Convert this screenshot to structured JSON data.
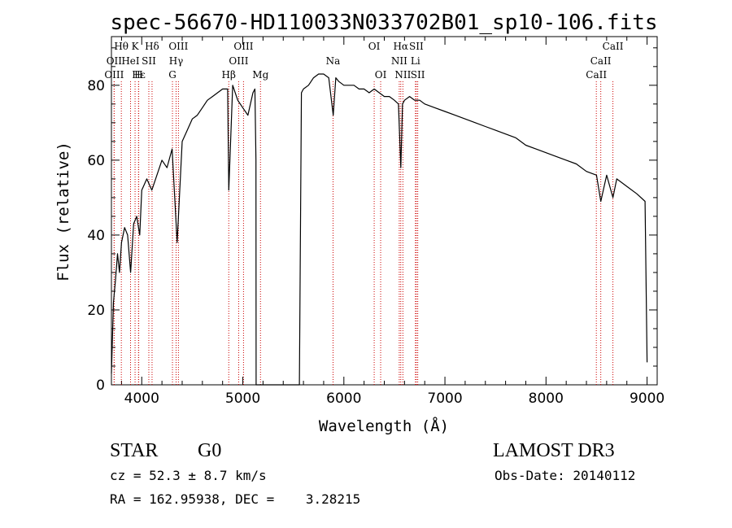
{
  "chart_data": {
    "type": "line",
    "title": "spec-56670-HD110033N033702B01_sp10-106.fits",
    "xlabel": "Wavelength (Å)",
    "ylabel": "Flux (relative)",
    "xlim": [
      3700,
      9100
    ],
    "ylim": [
      0,
      93
    ],
    "xticks": [
      4000,
      5000,
      6000,
      7000,
      8000,
      9000
    ],
    "yticks": [
      0,
      20,
      40,
      60,
      80
    ],
    "xtick_labels": [
      "4000",
      "5000",
      "6000",
      "7000",
      "8000",
      "9000"
    ],
    "ytick_labels": [
      "0",
      "20",
      "40",
      "60",
      "80"
    ],
    "series": [
      {
        "name": "flux",
        "color": "#000000",
        "x": [
          3700,
          3720,
          3740,
          3760,
          3780,
          3800,
          3830,
          3860,
          3890,
          3920,
          3950,
          3980,
          4000,
          4050,
          4100,
          4150,
          4200,
          4250,
          4300,
          4350,
          4400,
          4450,
          4500,
          4550,
          4600,
          4650,
          4700,
          4750,
          4800,
          4850,
          4861,
          4900,
          4950,
          5000,
          5050,
          5100,
          5120,
          5130,
          5132,
          5560,
          5580,
          5600,
          5650,
          5700,
          5750,
          5800,
          5850,
          5895,
          5920,
          5950,
          6000,
          6050,
          6100,
          6150,
          6200,
          6250,
          6300,
          6350,
          6400,
          6450,
          6500,
          6540,
          6563,
          6580,
          6600,
          6650,
          6700,
          6750,
          6800,
          6900,
          7000,
          7100,
          7200,
          7300,
          7400,
          7500,
          7600,
          7700,
          7800,
          7900,
          8000,
          8100,
          8200,
          8300,
          8400,
          8500,
          8542,
          8600,
          8662,
          8700,
          8800,
          8900,
          8980,
          9000
        ],
        "y": [
          3,
          22,
          28,
          35,
          30,
          38,
          42,
          40,
          30,
          43,
          45,
          40,
          52,
          55,
          52,
          56,
          60,
          58,
          63,
          38,
          65,
          68,
          71,
          72,
          74,
          76,
          77,
          78,
          79,
          79,
          52,
          80,
          76,
          74,
          72,
          78,
          79,
          60,
          0,
          0,
          78,
          79,
          80,
          82,
          83,
          83,
          82,
          72,
          82,
          81,
          80,
          80,
          80,
          79,
          79,
          78,
          79,
          78,
          77,
          77,
          76,
          75,
          58,
          75,
          76,
          77,
          76,
          76,
          75,
          74,
          73,
          72,
          71,
          70,
          69,
          68,
          67,
          66,
          64,
          63,
          62,
          61,
          60,
          59,
          57,
          56,
          49,
          56,
          50,
          55,
          53,
          51,
          49,
          6
        ]
      }
    ],
    "lines": [
      {
        "label": "Hθ",
        "x": 3798,
        "row": 0
      },
      {
        "label": "K",
        "x": 3934,
        "row": 0
      },
      {
        "label": "Hδ",
        "x": 4102,
        "row": 0
      },
      {
        "label": "OIII",
        "x": 4363,
        "row": 0
      },
      {
        "label": "OIII",
        "x": 5007,
        "row": 0
      },
      {
        "label": "OI",
        "x": 6300,
        "row": 0
      },
      {
        "label": "Hα",
        "x": 6563,
        "row": 0
      },
      {
        "label": "SII",
        "x": 6717,
        "row": 0
      },
      {
        "label": "CaII",
        "x": 8662,
        "row": 0
      },
      {
        "label": "OII",
        "x": 3727,
        "row": 1
      },
      {
        "label": "HeI",
        "x": 3889,
        "row": 1
      },
      {
        "label": "SII",
        "x": 4070,
        "row": 1
      },
      {
        "label": "Hγ",
        "x": 4340,
        "row": 1
      },
      {
        "label": "OIII",
        "x": 4959,
        "row": 1
      },
      {
        "label": "Na",
        "x": 5893,
        "row": 1
      },
      {
        "label": "NII",
        "x": 6548,
        "row": 1
      },
      {
        "label": "Li",
        "x": 6708,
        "row": 1
      },
      {
        "label": "CaII",
        "x": 8542,
        "row": 1
      },
      {
        "label": "OIII",
        "x": 3727,
        "row": 2
      },
      {
        "label": "Hε",
        "x": 3970,
        "row": 2
      },
      {
        "label": "H",
        "x": 3968,
        "row": 2
      },
      {
        "label": "G",
        "x": 4304,
        "row": 2
      },
      {
        "label": "Hβ",
        "x": 4861,
        "row": 2
      },
      {
        "label": "Mg",
        "x": 5175,
        "row": 2
      },
      {
        "label": "OI",
        "x": 6364,
        "row": 2
      },
      {
        "label": "NII",
        "x": 6584,
        "row": 2
      },
      {
        "label": "SII",
        "x": 6731,
        "row": 2
      },
      {
        "label": "CaII",
        "x": 8498,
        "row": 2
      }
    ],
    "grid": false,
    "legend": "none"
  },
  "info": {
    "object_class": "STAR",
    "subclass": "G0",
    "survey": "LAMOST DR3",
    "redshift": "cz = 52.3 ± 8.7 km/s",
    "obs_date": "Obs-Date: 20140112",
    "coords": "RA = 162.95938, DEC =    3.28215"
  }
}
